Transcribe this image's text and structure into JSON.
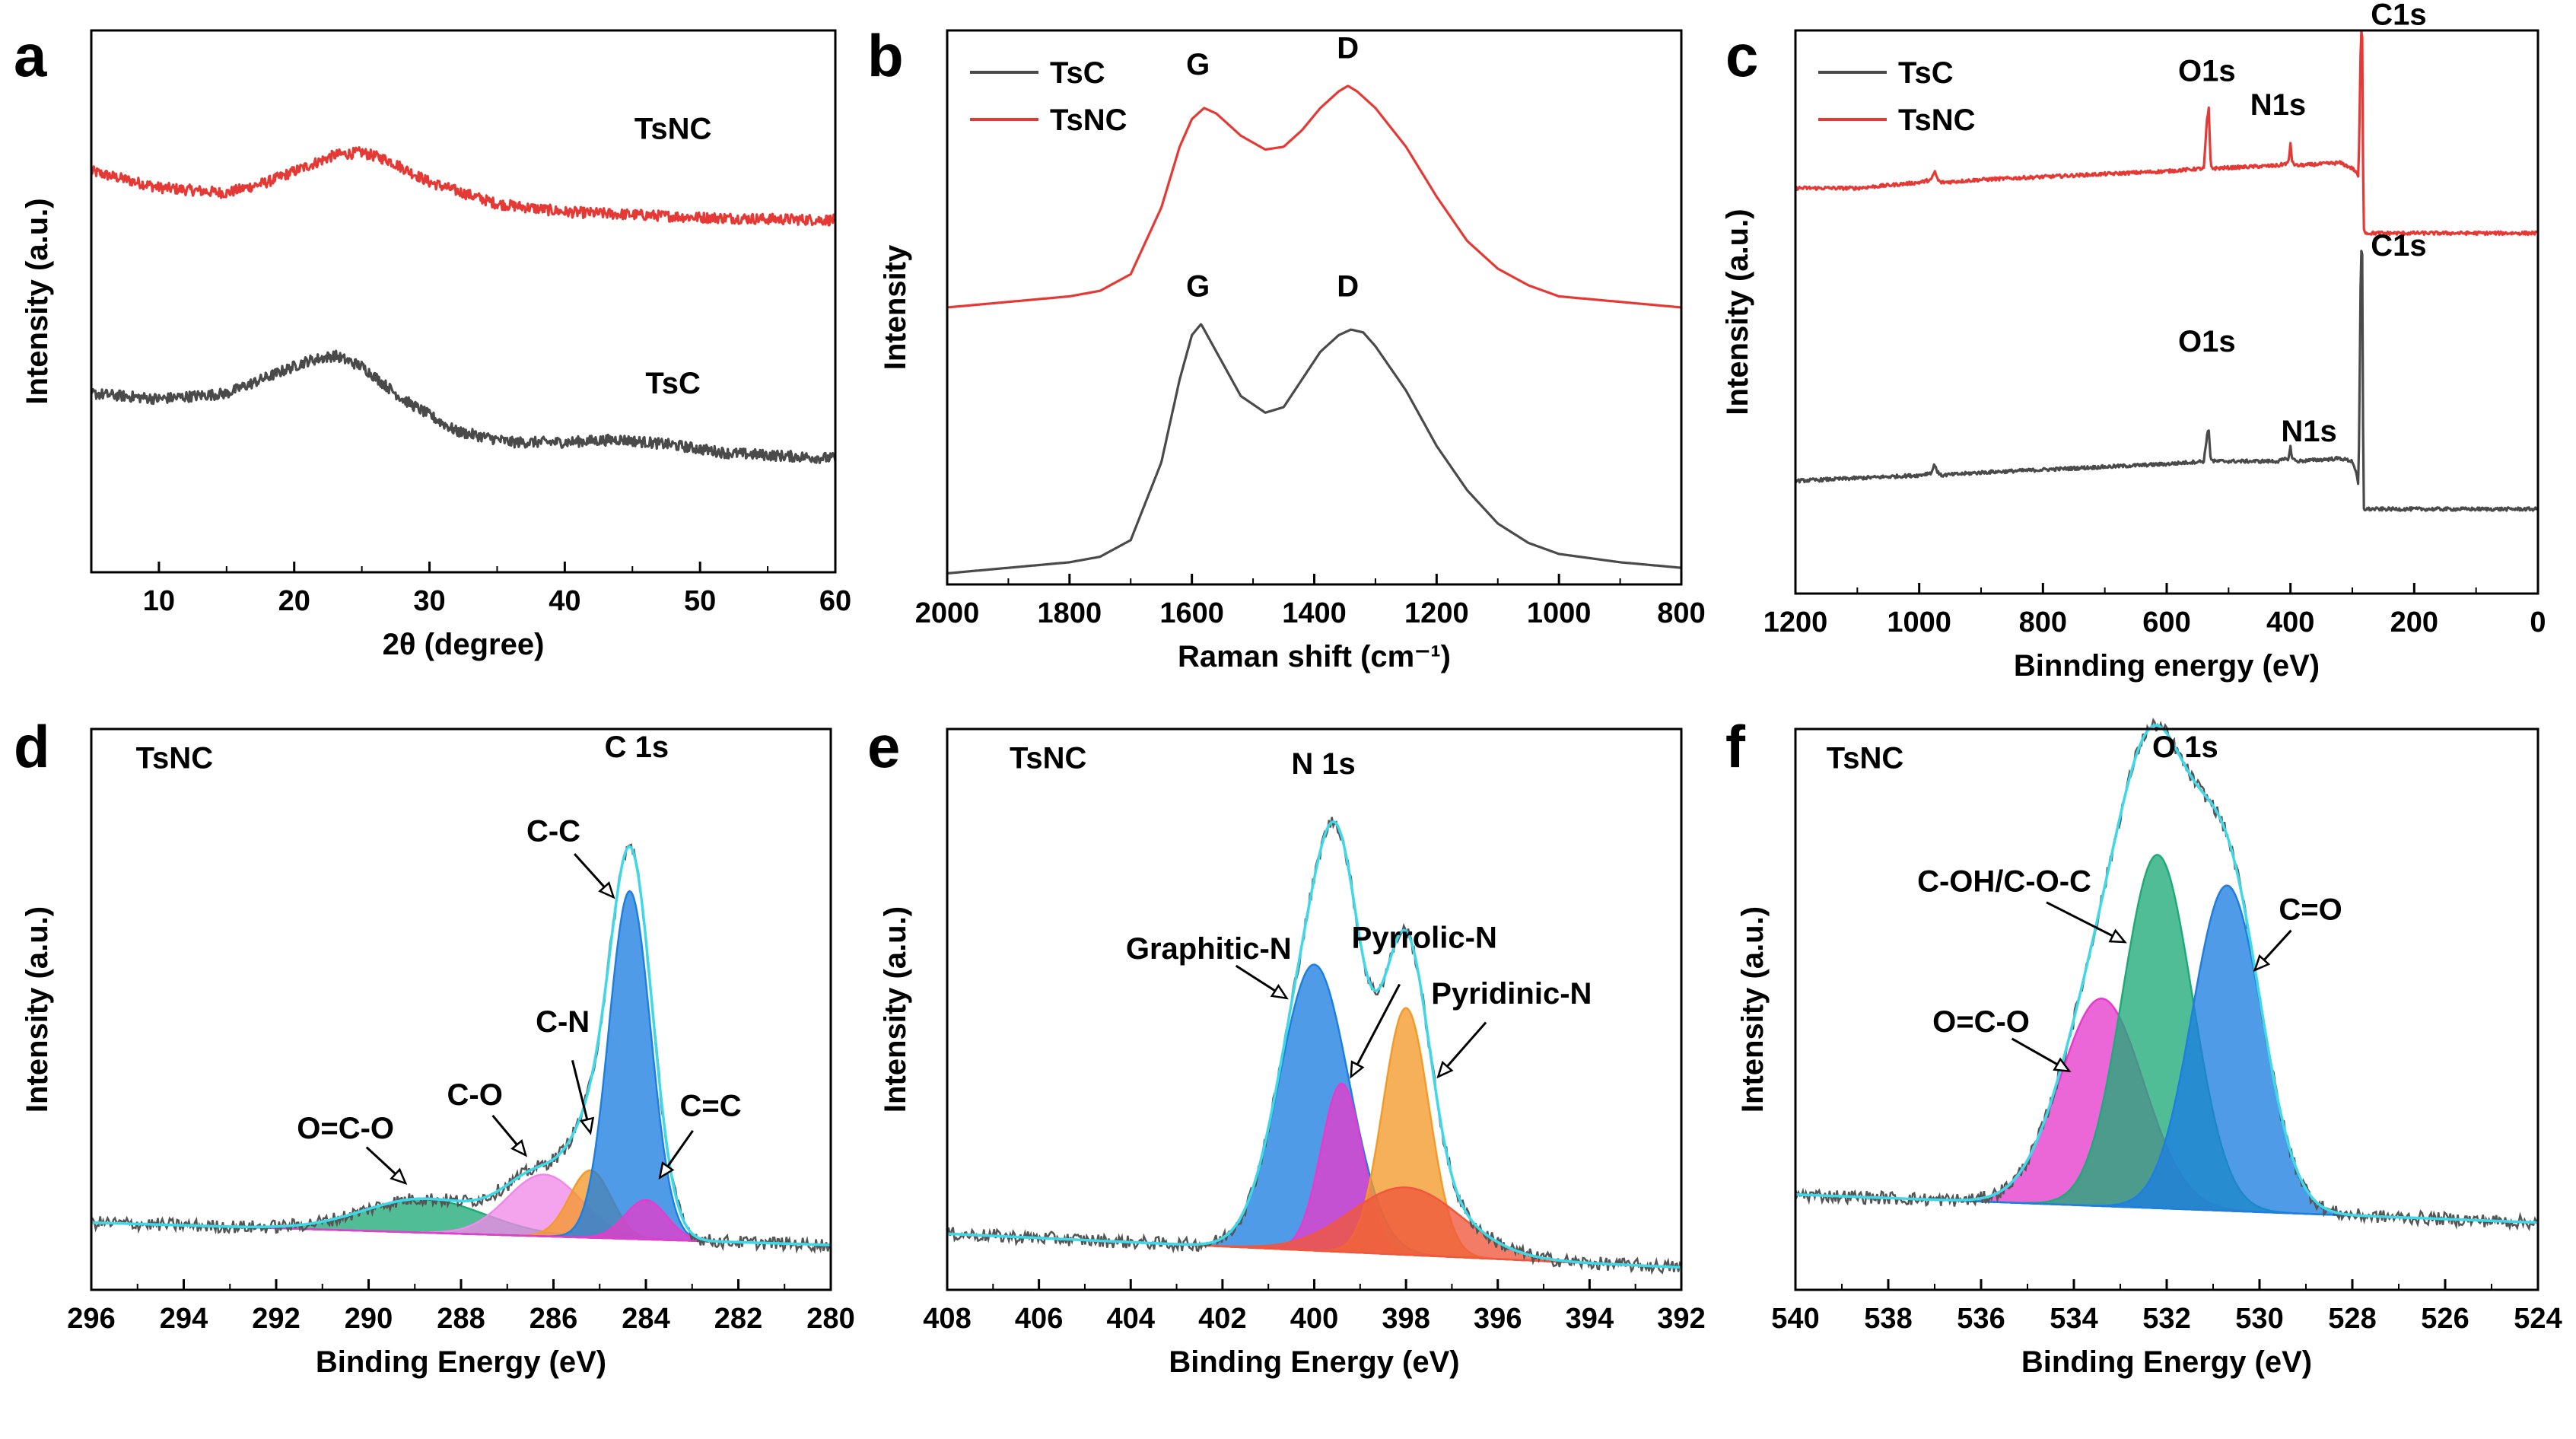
{
  "chart_data": [
    {
      "panel": "a",
      "type": "line",
      "xlabel": "2θ (degree)",
      "ylabel": "Intensity (a.u.)",
      "xlim": [
        5,
        60
      ],
      "xticks": [
        10,
        20,
        30,
        40,
        50,
        60
      ],
      "x_reversed": false,
      "yticks_shown": false,
      "series": [
        {
          "name": "TsNC",
          "color": "#e53935",
          "noise": 0.01,
          "x": [
            5,
            10,
            15,
            18,
            21,
            23,
            25,
            27,
            30,
            35,
            40,
            45,
            50,
            55,
            60
          ],
          "y": [
            0.74,
            0.71,
            0.7,
            0.72,
            0.75,
            0.77,
            0.775,
            0.76,
            0.72,
            0.68,
            0.665,
            0.66,
            0.655,
            0.652,
            0.65
          ]
        },
        {
          "name": "TsC",
          "color": "#4a4a4a",
          "noise": 0.01,
          "x": [
            5,
            10,
            15,
            18,
            21,
            23,
            25,
            28,
            32,
            36,
            40,
            44,
            48,
            52,
            56,
            60
          ],
          "y": [
            0.33,
            0.32,
            0.33,
            0.36,
            0.39,
            0.4,
            0.38,
            0.32,
            0.26,
            0.24,
            0.24,
            0.245,
            0.235,
            0.22,
            0.215,
            0.21
          ]
        }
      ],
      "annotations": [
        {
          "text": "TsNC",
          "x": 48,
          "y": 0.8
        },
        {
          "text": "TsC",
          "x": 48,
          "y": 0.33
        }
      ]
    },
    {
      "panel": "b",
      "type": "line",
      "xlabel": "Raman shift (cm⁻¹)",
      "ylabel": "Intensity",
      "xlim": [
        2000,
        800
      ],
      "xticks": [
        2000,
        1800,
        1600,
        1400,
        1200,
        1000,
        800
      ],
      "x_reversed": true,
      "yticks_shown": false,
      "legend": {
        "position": "top-left",
        "entries": [
          "TsC",
          "TsNC"
        ]
      },
      "series": [
        {
          "name": "TsC",
          "color": "#4a4a4a",
          "noise": 0,
          "x": [
            2000,
            1900,
            1800,
            1750,
            1700,
            1650,
            1620,
            1600,
            1585,
            1560,
            1520,
            1480,
            1450,
            1420,
            1390,
            1360,
            1340,
            1320,
            1300,
            1250,
            1200,
            1150,
            1100,
            1050,
            1000,
            900,
            800
          ],
          "y": [
            0.02,
            0.03,
            0.04,
            0.05,
            0.08,
            0.22,
            0.37,
            0.45,
            0.47,
            0.42,
            0.34,
            0.31,
            0.32,
            0.37,
            0.42,
            0.45,
            0.46,
            0.455,
            0.43,
            0.35,
            0.25,
            0.17,
            0.11,
            0.075,
            0.055,
            0.04,
            0.03
          ]
        },
        {
          "name": "TsNC",
          "color": "#e53935",
          "noise": 0,
          "x": [
            2000,
            1900,
            1800,
            1750,
            1700,
            1650,
            1620,
            1600,
            1580,
            1560,
            1520,
            1480,
            1450,
            1420,
            1390,
            1360,
            1345,
            1330,
            1300,
            1250,
            1200,
            1150,
            1100,
            1050,
            1000,
            900,
            800
          ],
          "y": [
            0.5,
            0.51,
            0.52,
            0.53,
            0.56,
            0.68,
            0.79,
            0.84,
            0.86,
            0.85,
            0.81,
            0.785,
            0.79,
            0.82,
            0.86,
            0.89,
            0.9,
            0.89,
            0.86,
            0.79,
            0.7,
            0.62,
            0.57,
            0.54,
            0.52,
            0.51,
            0.5
          ]
        }
      ],
      "annotations": [
        {
          "text": "G",
          "x": 1590,
          "y": 0.92
        },
        {
          "text": "D",
          "x": 1345,
          "y": 0.95
        },
        {
          "text": "G",
          "x": 1590,
          "y": 0.52
        },
        {
          "text": "D",
          "x": 1345,
          "y": 0.52
        }
      ]
    },
    {
      "panel": "c",
      "type": "line",
      "xlabel": "Binnding energy (eV)",
      "ylabel": "Intensity (a.u.)",
      "xlim": [
        1200,
        0
      ],
      "xticks": [
        1200,
        1000,
        800,
        600,
        400,
        200,
        0
      ],
      "x_reversed": true,
      "yticks_shown": false,
      "legend": {
        "position": "top-left",
        "entries": [
          "TsC",
          "TsNC"
        ]
      },
      "series": [
        {
          "name": "TsNC",
          "color": "#e53935",
          "noise": 0.003,
          "x": [
            1200,
            1100,
            1000,
            980,
            975,
            970,
            965,
            900,
            800,
            700,
            600,
            540,
            535,
            532,
            529,
            525,
            420,
            403,
            400,
            397,
            390,
            320,
            300,
            295,
            290,
            286,
            284,
            282,
            278,
            250,
            200,
            100,
            0
          ],
          "y": [
            0.72,
            0.72,
            0.73,
            0.735,
            0.75,
            0.735,
            0.73,
            0.735,
            0.74,
            0.745,
            0.75,
            0.755,
            0.84,
            0.86,
            0.76,
            0.755,
            0.76,
            0.765,
            0.8,
            0.765,
            0.76,
            0.765,
            0.755,
            0.75,
            0.74,
            1.0,
            0.99,
            0.65,
            0.64,
            0.64,
            0.64,
            0.64,
            0.64
          ]
        },
        {
          "name": "TsC",
          "color": "#4a4a4a",
          "noise": 0.003,
          "x": [
            1200,
            1100,
            1000,
            980,
            975,
            970,
            965,
            900,
            800,
            700,
            600,
            540,
            535,
            532,
            529,
            525,
            420,
            403,
            400,
            397,
            390,
            320,
            300,
            295,
            290,
            286,
            284,
            282,
            278,
            250,
            200,
            100,
            0
          ],
          "y": [
            0.2,
            0.205,
            0.21,
            0.215,
            0.23,
            0.215,
            0.21,
            0.215,
            0.22,
            0.225,
            0.23,
            0.235,
            0.28,
            0.29,
            0.24,
            0.235,
            0.235,
            0.24,
            0.26,
            0.24,
            0.235,
            0.24,
            0.235,
            0.22,
            0.19,
            0.61,
            0.6,
            0.15,
            0.15,
            0.15,
            0.15,
            0.15,
            0.15
          ]
        }
      ],
      "annotations": [
        {
          "text": "C1s",
          "x": 225,
          "y": 1.01
        },
        {
          "text": "O1s",
          "x": 535,
          "y": 0.91
        },
        {
          "text": "N1s",
          "x": 420,
          "y": 0.85
        },
        {
          "text": "C1s",
          "x": 225,
          "y": 0.6
        },
        {
          "text": "O1s",
          "x": 535,
          "y": 0.43
        },
        {
          "text": "N1s",
          "x": 370,
          "y": 0.27
        }
      ]
    },
    {
      "panel": "d",
      "type": "line",
      "subtype": "xps-deconvolution",
      "xlabel": "Binding Energy (eV)",
      "ylabel": "Intensity (a.u.)",
      "xlim": [
        296,
        280
      ],
      "xticks": [
        296,
        294,
        292,
        290,
        288,
        286,
        284,
        282,
        280
      ],
      "x_reversed": true,
      "yticks_shown": false,
      "sample": "TsNC",
      "peak_title": "C 1s",
      "baseline": {
        "x": [
          296,
          280
        ],
        "y": [
          0.12,
          0.08
        ]
      },
      "components": [
        {
          "name": "O=C-O",
          "center": 288.8,
          "height": 0.06,
          "sigma": 1.3,
          "color": "#1faa78"
        },
        {
          "name": "C-O",
          "center": 286.2,
          "height": 0.11,
          "sigma": 0.8,
          "color": "#f08ae8"
        },
        {
          "name": "C-N",
          "center": 285.2,
          "height": 0.12,
          "sigma": 0.45,
          "color": "#f49a2a"
        },
        {
          "name": "C-C",
          "center": 284.35,
          "height": 0.62,
          "sigma": 0.45,
          "color": "#1e7fe0"
        },
        {
          "name": "C=C",
          "center": 284.0,
          "height": 0.07,
          "sigma": 0.45,
          "color": "#e63ccc"
        }
      ],
      "annotations": [
        {
          "text": "TsNC",
          "x": 294.2,
          "y": 0.93
        },
        {
          "text": "C 1s",
          "x": 284.2,
          "y": 0.95
        },
        {
          "text": "C-C",
          "x": 286.0,
          "y": 0.8,
          "arrow_to": [
            284.7,
            0.7
          ]
        },
        {
          "text": "C-N",
          "x": 285.8,
          "y": 0.46,
          "arrow_to": [
            285.2,
            0.28
          ]
        },
        {
          "text": "C-O",
          "x": 287.7,
          "y": 0.33,
          "arrow_to": [
            286.6,
            0.24
          ]
        },
        {
          "text": "O=C-O",
          "x": 290.5,
          "y": 0.27,
          "arrow_to": [
            289.2,
            0.19
          ]
        },
        {
          "text": "C=C",
          "x": 282.6,
          "y": 0.31,
          "arrow_to": [
            283.7,
            0.2
          ]
        }
      ]
    },
    {
      "panel": "e",
      "type": "line",
      "subtype": "xps-deconvolution",
      "xlabel": "Binding Energy (eV)",
      "ylabel": "Intensity (a.u.)",
      "xlim": [
        408,
        392
      ],
      "xticks": [
        408,
        406,
        404,
        402,
        400,
        398,
        396,
        394,
        392
      ],
      "x_reversed": true,
      "yticks_shown": false,
      "sample": "TsNC",
      "peak_title": "N 1s",
      "baseline": {
        "x": [
          408,
          392
        ],
        "y": [
          0.1,
          0.04
        ]
      },
      "components": [
        {
          "name": "Graphitic-N",
          "center": 400.0,
          "height": 0.51,
          "sigma": 0.75,
          "color": "#1e7fe0"
        },
        {
          "name": "Pyrrolic-N",
          "center": 399.4,
          "height": 0.3,
          "sigma": 0.45,
          "color": "#e63ccc"
        },
        {
          "name": "Pyridinic-N",
          "center": 398.0,
          "height": 0.44,
          "sigma": 0.5,
          "color": "#f49a2a"
        },
        {
          "name": "",
          "center": 398.0,
          "height": 0.12,
          "sigma": 1.2,
          "color": "#f0573c"
        }
      ],
      "annotations": [
        {
          "text": "TsNC",
          "x": 405.8,
          "y": 0.93
        },
        {
          "text": "N 1s",
          "x": 399.8,
          "y": 0.92
        },
        {
          "text": "Graphitic-N",
          "x": 402.3,
          "y": 0.59,
          "arrow_to": [
            400.6,
            0.52
          ]
        },
        {
          "text": "Pyrrolic-N",
          "x": 397.6,
          "y": 0.61,
          "arrow_to": [
            399.2,
            0.38
          ]
        },
        {
          "text": "Pyridinic-N",
          "x": 395.7,
          "y": 0.51,
          "arrow_to": [
            397.3,
            0.38
          ]
        }
      ]
    },
    {
      "panel": "f",
      "type": "line",
      "subtype": "xps-deconvolution",
      "xlabel": "Binding Energy (eV)",
      "ylabel": "Intensity (a.u.)",
      "xlim": [
        540,
        524
      ],
      "xticks": [
        540,
        538,
        536,
        534,
        532,
        530,
        528,
        526,
        524
      ],
      "x_reversed": true,
      "yticks_shown": false,
      "sample": "TsNC",
      "peak_title": "O 1s",
      "baseline": {
        "x": [
          540,
          524
        ],
        "y": [
          0.17,
          0.12
        ]
      },
      "components": [
        {
          "name": "O=C-O",
          "center": 533.4,
          "height": 0.37,
          "sigma": 0.9,
          "color": "#e63ccc"
        },
        {
          "name": "C-OH/C-O-C",
          "center": 532.2,
          "height": 0.63,
          "sigma": 0.75,
          "color": "#1faa78"
        },
        {
          "name": "C=O",
          "center": 530.7,
          "height": 0.58,
          "sigma": 0.75,
          "color": "#1e7fe0"
        }
      ],
      "annotations": [
        {
          "text": "TsNC",
          "x": 538.5,
          "y": 0.93
        },
        {
          "text": "O 1s",
          "x": 531.6,
          "y": 0.95
        },
        {
          "text": "C-OH/C-O-C",
          "x": 535.5,
          "y": 0.71,
          "arrow_to": [
            532.9,
            0.62
          ]
        },
        {
          "text": "C=O",
          "x": 528.9,
          "y": 0.66,
          "arrow_to": [
            530.1,
            0.57
          ]
        },
        {
          "text": "O=C-O",
          "x": 536.0,
          "y": 0.46,
          "arrow_to": [
            534.1,
            0.39
          ]
        }
      ]
    }
  ]
}
